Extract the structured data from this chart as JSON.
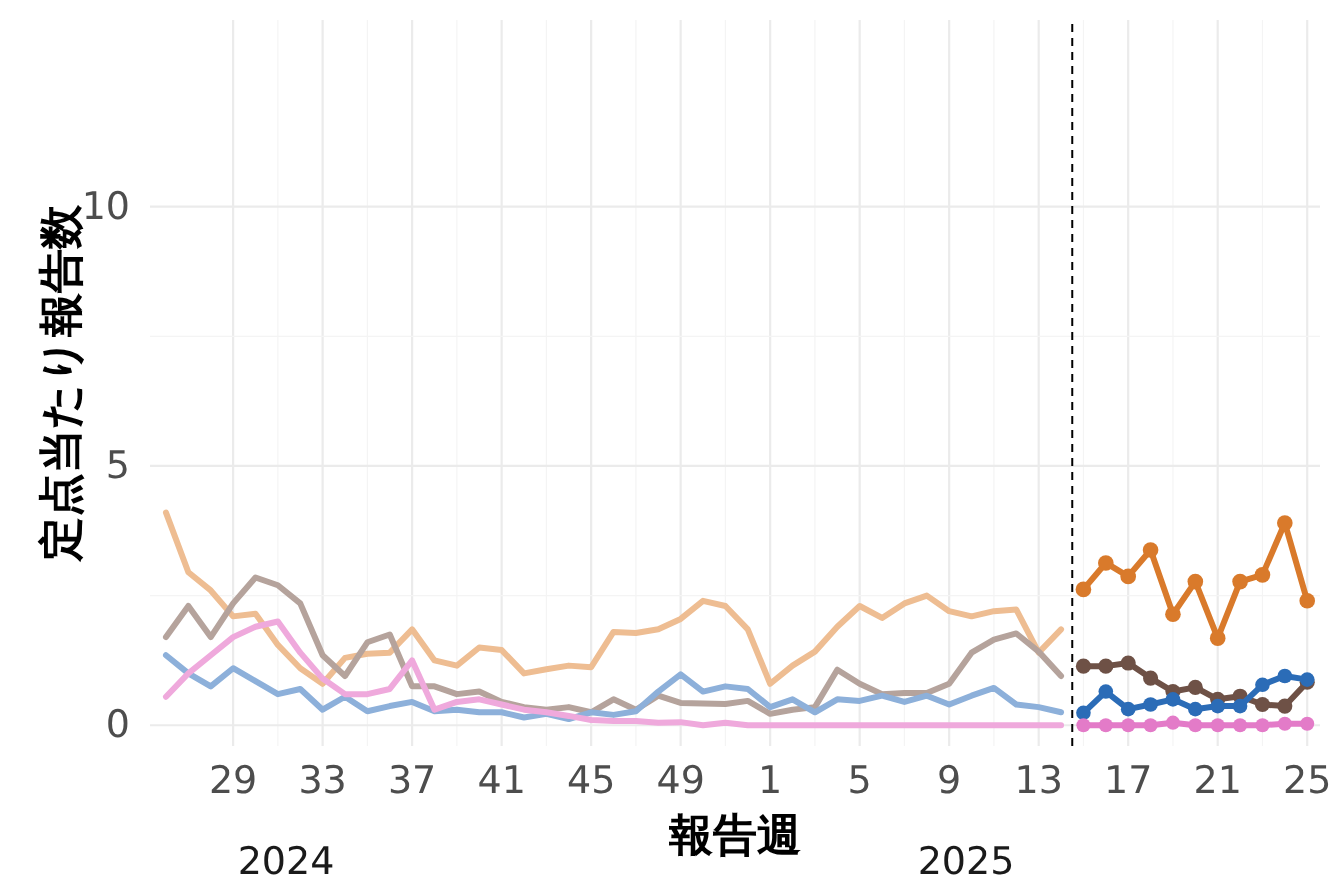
{
  "chart_data": {
    "type": "line",
    "xlabel": "報告週",
    "ylabel": "定点当たり報告数",
    "xlim": [
      "2024-06-19",
      "2025-06-20"
    ],
    "ylim": [
      -0.4,
      13.6
    ],
    "xticks": [
      {
        "value": "2024-07-15",
        "label": "29"
      },
      {
        "value": "2024-08-12",
        "label": "33"
      },
      {
        "value": "2024-09-09",
        "label": "37"
      },
      {
        "value": "2024-10-07",
        "label": "41"
      },
      {
        "value": "2024-11-04",
        "label": "45"
      },
      {
        "value": "2024-12-02",
        "label": "49"
      },
      {
        "value": "2024-12-30",
        "label": "1"
      },
      {
        "value": "2025-01-27",
        "label": "5"
      },
      {
        "value": "2025-02-24",
        "label": "9"
      },
      {
        "value": "2025-03-24",
        "label": "13"
      },
      {
        "value": "2025-04-21",
        "label": "17"
      },
      {
        "value": "2025-05-19",
        "label": "21"
      },
      {
        "value": "2025-06-16",
        "label": "25"
      }
    ],
    "yticks": [
      0,
      5,
      10
    ],
    "grid": true,
    "line_style": "solid",
    "ref_lines": [
      {
        "axis": "x",
        "value": "2025-04-03T12:00",
        "color": "#000000",
        "line_style": "dashed"
      }
    ],
    "annotations": [
      "2024",
      "2025"
    ],
    "series": [
      {
        "color": "#eebd92",
        "marker": "none",
        "x": [
          "2024-06-24",
          "2024-07-01",
          "2024-07-08",
          "2024-07-15",
          "2024-07-22",
          "2024-07-29",
          "2024-08-05",
          "2024-08-12",
          "2024-08-19",
          "2024-08-26",
          "2024-09-02",
          "2024-09-09",
          "2024-09-16",
          "2024-09-23",
          "2024-09-30",
          "2024-10-07",
          "2024-10-14",
          "2024-10-21",
          "2024-10-28",
          "2024-11-04",
          "2024-11-11",
          "2024-11-18",
          "2024-11-25",
          "2024-12-02",
          "2024-12-09",
          "2024-12-16",
          "2024-12-23",
          "2024-12-30",
          "2025-01-06",
          "2025-01-13",
          "2025-01-20",
          "2025-01-27",
          "2025-02-03",
          "2025-02-10",
          "2025-02-17",
          "2025-02-24",
          "2025-03-03",
          "2025-03-10",
          "2025-03-17",
          "2025-03-24",
          "2025-03-31"
        ],
        "values": [
          4.1,
          2.95,
          2.6,
          2.1,
          2.15,
          1.55,
          1.1,
          0.8,
          1.3,
          1.38,
          1.4,
          1.85,
          1.25,
          1.15,
          1.5,
          1.45,
          1.0,
          1.08,
          1.15,
          1.12,
          1.8,
          1.78,
          1.85,
          2.05,
          2.4,
          2.3,
          1.85,
          0.8,
          1.15,
          1.42,
          1.9,
          2.3,
          2.07,
          2.35,
          2.5,
          2.2,
          2.1,
          2.2,
          2.23,
          1.4,
          1.85
        ]
      },
      {
        "color": "#b5a39c",
        "marker": "none",
        "x": [
          "2024-06-24",
          "2024-07-01",
          "2024-07-08",
          "2024-07-15",
          "2024-07-22",
          "2024-07-29",
          "2024-08-05",
          "2024-08-12",
          "2024-08-19",
          "2024-08-26",
          "2024-09-02",
          "2024-09-09",
          "2024-09-16",
          "2024-09-23",
          "2024-09-30",
          "2024-10-07",
          "2024-10-14",
          "2024-10-21",
          "2024-10-28",
          "2024-11-04",
          "2024-11-11",
          "2024-11-18",
          "2024-11-25",
          "2024-12-02",
          "2024-12-09",
          "2024-12-16",
          "2024-12-23",
          "2024-12-30",
          "2025-01-06",
          "2025-01-13",
          "2025-01-20",
          "2025-01-27",
          "2025-02-03",
          "2025-02-10",
          "2025-02-17",
          "2025-02-24",
          "2025-03-03",
          "2025-03-10",
          "2025-03-17",
          "2025-03-24",
          "2025-03-31"
        ],
        "values": [
          1.7,
          2.3,
          1.7,
          2.35,
          2.85,
          2.7,
          2.35,
          1.35,
          0.95,
          1.6,
          1.75,
          0.75,
          0.75,
          0.6,
          0.65,
          0.45,
          0.35,
          0.3,
          0.35,
          0.25,
          0.5,
          0.3,
          0.57,
          0.43,
          0.42,
          0.41,
          0.47,
          0.22,
          0.3,
          0.35,
          1.07,
          0.8,
          0.6,
          0.62,
          0.62,
          0.8,
          1.4,
          1.65,
          1.77,
          1.42,
          0.95
        ]
      },
      {
        "color": "#8db0da",
        "marker": "none",
        "x": [
          "2024-06-24",
          "2024-07-01",
          "2024-07-08",
          "2024-07-15",
          "2024-07-22",
          "2024-07-29",
          "2024-08-05",
          "2024-08-12",
          "2024-08-19",
          "2024-08-26",
          "2024-09-02",
          "2024-09-09",
          "2024-09-16",
          "2024-09-23",
          "2024-09-30",
          "2024-10-07",
          "2024-10-14",
          "2024-10-21",
          "2024-10-28",
          "2024-11-04",
          "2024-11-11",
          "2024-11-18",
          "2024-11-25",
          "2024-12-02",
          "2024-12-09",
          "2024-12-16",
          "2024-12-23",
          "2024-12-30",
          "2025-01-06",
          "2025-01-13",
          "2025-01-20",
          "2025-01-27",
          "2025-02-03",
          "2025-02-10",
          "2025-02-17",
          "2025-02-24",
          "2025-03-03",
          "2025-03-10",
          "2025-03-17",
          "2025-03-24",
          "2025-03-31"
        ],
        "values": [
          1.35,
          1.0,
          0.75,
          1.1,
          0.85,
          0.6,
          0.7,
          0.3,
          0.55,
          0.27,
          0.37,
          0.45,
          0.27,
          0.3,
          0.25,
          0.25,
          0.15,
          0.22,
          0.12,
          0.25,
          0.2,
          0.27,
          0.65,
          0.98,
          0.65,
          0.75,
          0.7,
          0.35,
          0.5,
          0.25,
          0.5,
          0.47,
          0.57,
          0.45,
          0.57,
          0.4,
          0.57,
          0.72,
          0.4,
          0.35,
          0.25
        ]
      },
      {
        "color": "#efa9dc",
        "marker": "none",
        "x": [
          "2024-06-24",
          "2024-07-01",
          "2024-07-08",
          "2024-07-15",
          "2024-07-22",
          "2024-07-29",
          "2024-08-05",
          "2024-08-12",
          "2024-08-19",
          "2024-08-26",
          "2024-09-02",
          "2024-09-09",
          "2024-09-16",
          "2024-09-23",
          "2024-09-30",
          "2024-10-07",
          "2024-10-14",
          "2024-10-21",
          "2024-10-28",
          "2024-11-04",
          "2024-11-11",
          "2024-11-18",
          "2024-11-25",
          "2024-12-02",
          "2024-12-09",
          "2024-12-16",
          "2024-12-23",
          "2024-12-30",
          "2025-01-06",
          "2025-01-13",
          "2025-01-20",
          "2025-01-27",
          "2025-02-03",
          "2025-02-10",
          "2025-02-17",
          "2025-02-24",
          "2025-03-03",
          "2025-03-10",
          "2025-03-17",
          "2025-03-24",
          "2025-03-31"
        ],
        "values": [
          0.55,
          1.0,
          1.35,
          1.7,
          1.9,
          2.0,
          1.4,
          0.9,
          0.6,
          0.6,
          0.7,
          1.25,
          0.3,
          0.45,
          0.5,
          0.4,
          0.3,
          0.25,
          0.18,
          0.1,
          0.08,
          0.08,
          0.05,
          0.06,
          0.0,
          0.05,
          0.0,
          0,
          0,
          0,
          0,
          0,
          0,
          0,
          0,
          0,
          0,
          0,
          0,
          0,
          0
        ]
      },
      {
        "color": "#d97a2b",
        "marker": "circle",
        "x": [
          "2025-04-07",
          "2025-04-14",
          "2025-04-21",
          "2025-04-28",
          "2025-05-05",
          "2025-05-12",
          "2025-05-19",
          "2025-05-26",
          "2025-06-02",
          "2025-06-09",
          "2025-06-16"
        ],
        "values": [
          2.62,
          3.13,
          2.87,
          3.38,
          2.14,
          2.77,
          1.68,
          2.77,
          2.9,
          3.9,
          2.4
        ]
      },
      {
        "color": "#6e5146",
        "marker": "circle",
        "x": [
          "2025-04-07",
          "2025-04-14",
          "2025-04-21",
          "2025-04-28",
          "2025-05-05",
          "2025-05-12",
          "2025-05-19",
          "2025-05-26",
          "2025-06-02",
          "2025-06-09",
          "2025-06-16"
        ],
        "values": [
          1.14,
          1.14,
          1.2,
          0.91,
          0.65,
          0.73,
          0.5,
          0.56,
          0.4,
          0.37,
          0.83
        ]
      },
      {
        "color": "#2b6cb7",
        "marker": "circle",
        "x": [
          "2025-04-07",
          "2025-04-14",
          "2025-04-21",
          "2025-04-28",
          "2025-05-05",
          "2025-05-12",
          "2025-05-19",
          "2025-05-26",
          "2025-06-02",
          "2025-06-09",
          "2025-06-16"
        ],
        "values": [
          0.24,
          0.65,
          0.31,
          0.4,
          0.5,
          0.31,
          0.37,
          0.37,
          0.78,
          0.95,
          0.88
        ]
      },
      {
        "color": "#e37bc8",
        "marker": "circle",
        "x": [
          "2025-04-07",
          "2025-04-14",
          "2025-04-21",
          "2025-04-28",
          "2025-05-05",
          "2025-05-12",
          "2025-05-19",
          "2025-05-26",
          "2025-06-02",
          "2025-06-09",
          "2025-06-16"
        ],
        "values": [
          0,
          0,
          0,
          0,
          0.05,
          0,
          0,
          0,
          0,
          0.03,
          0.03
        ]
      }
    ]
  }
}
